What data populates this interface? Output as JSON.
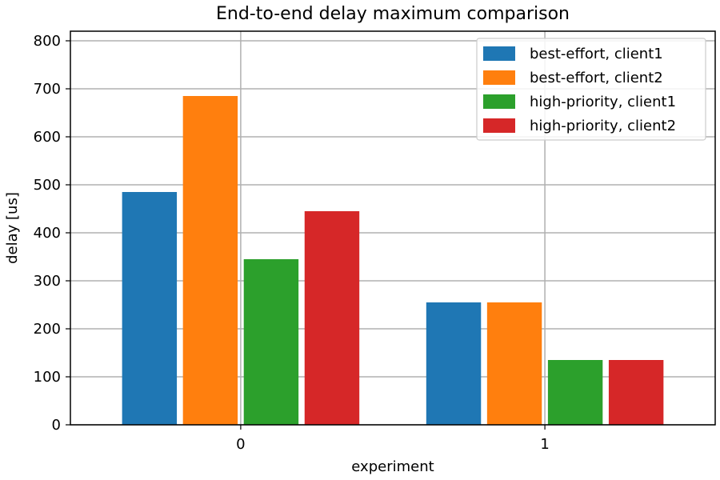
{
  "chart_data": {
    "type": "bar",
    "title": "End-to-end delay maximum comparison",
    "xlabel": "experiment",
    "ylabel": "delay [us]",
    "categories": [
      "0",
      "1"
    ],
    "ylim": [
      0,
      820
    ],
    "yticks": [
      0,
      100,
      200,
      300,
      400,
      500,
      600,
      700,
      800
    ],
    "grid": true,
    "legend_position": "top-right",
    "series": [
      {
        "name": "best-effort, client1",
        "color": "#1f77b4",
        "values": [
          485,
          255
        ]
      },
      {
        "name": "best-effort, client2",
        "color": "#ff7f0e",
        "values": [
          685,
          255
        ]
      },
      {
        "name": "high-priority, client1",
        "color": "#2ca02c",
        "values": [
          345,
          135
        ]
      },
      {
        "name": "high-priority, client2",
        "color": "#d62728",
        "values": [
          445,
          135
        ]
      }
    ]
  }
}
